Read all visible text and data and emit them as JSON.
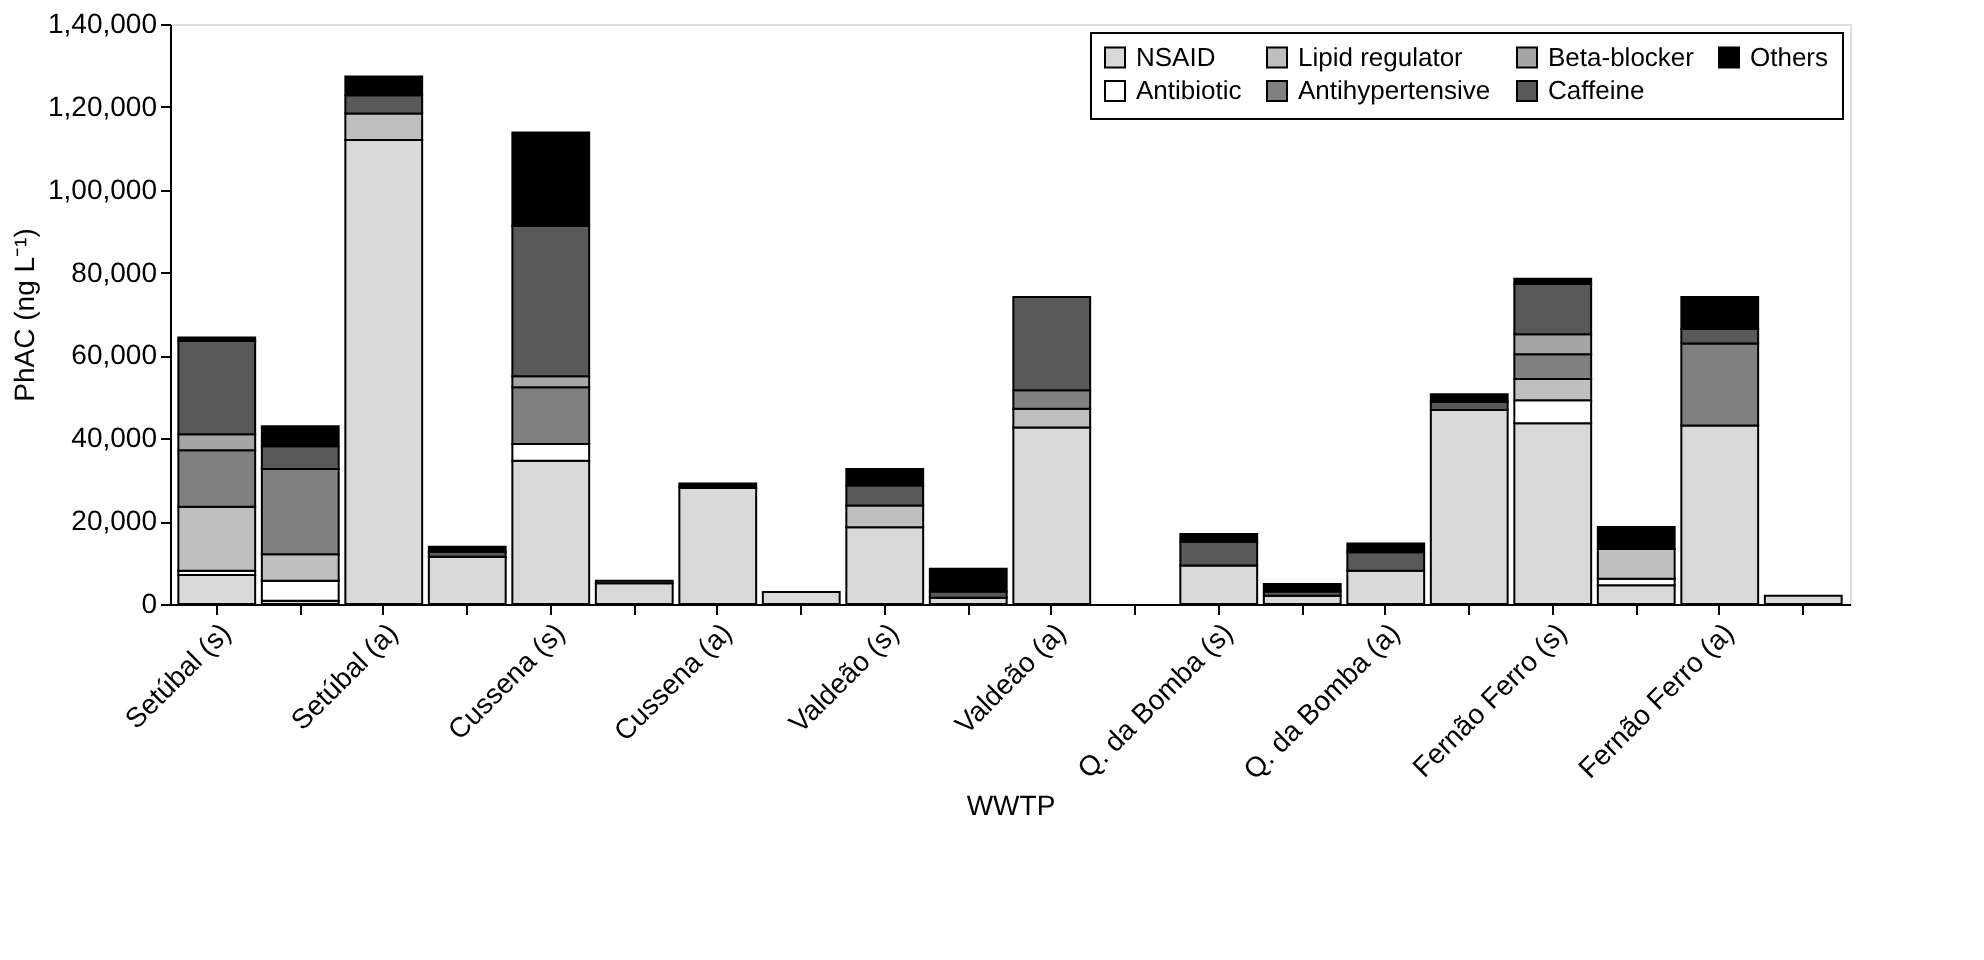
{
  "chart_data": {
    "type": "bar",
    "stacked": true,
    "xlabel": "WWTP",
    "ylabel": "PhAC (ng L⁻¹)",
    "categories": [
      "Setúbal (s)",
      null,
      "Setúbal (a)",
      null,
      "Cussena (s)",
      null,
      "Cussena (a)",
      null,
      "Valdeão (s)",
      null,
      "Valdeão (a)",
      null,
      "Q. da Bomba (s)",
      null,
      "Q. da Bomba (a)",
      null,
      "Fernão Ferro (s)",
      null,
      "Fernão Ferro (a)",
      null
    ],
    "series": [
      {
        "name": "NSAID",
        "color": "#d9d9d9",
        "values": [
          7000,
          800,
          112000,
          11400,
          34600,
          5000,
          28000,
          2900,
          18500,
          1500,
          42600,
          null,
          9300,
          2000,
          8000,
          46800,
          43600,
          4500,
          43100,
          2000
        ]
      },
      {
        "name": "Antibiotic",
        "color": "#ffffff",
        "values": [
          1000,
          4800,
          null,
          null,
          4000,
          null,
          null,
          null,
          null,
          null,
          null,
          null,
          null,
          null,
          null,
          null,
          5600,
          1600,
          null,
          null
        ]
      },
      {
        "name": "Lipid regulator",
        "color": "#bfbfbf",
        "values": [
          15500,
          6400,
          6400,
          null,
          null,
          null,
          null,
          null,
          5300,
          null,
          4500,
          null,
          null,
          null,
          null,
          null,
          5100,
          7200,
          null,
          null
        ]
      },
      {
        "name": "Antihypertensive",
        "color": "#808080",
        "values": [
          13600,
          20600,
          null,
          null,
          13700,
          null,
          null,
          null,
          null,
          null,
          4500,
          null,
          null,
          null,
          null,
          null,
          6000,
          null,
          19800,
          null
        ]
      },
      {
        "name": "Beta-blocker",
        "color": "#a6a6a6",
        "values": [
          3900,
          null,
          null,
          null,
          2700,
          null,
          null,
          null,
          null,
          null,
          null,
          null,
          null,
          null,
          null,
          null,
          4800,
          null,
          null,
          null
        ]
      },
      {
        "name": "Caffeine",
        "color": "#595959",
        "values": [
          22500,
          5500,
          4400,
          1200,
          36300,
          600,
          null,
          null,
          4800,
          1500,
          22500,
          null,
          5700,
          1000,
          4500,
          2000,
          12200,
          null,
          3500,
          null
        ]
      },
      {
        "name": "Others",
        "color": "#000000",
        "values": [
          800,
          4800,
          4500,
          1200,
          22500,
          null,
          1100,
          null,
          4000,
          5500,
          null,
          null,
          1900,
          1800,
          2100,
          1800,
          1200,
          5300,
          7700,
          null
        ]
      }
    ],
    "ylim": [
      0,
      140000
    ],
    "yticks": [
      0,
      {
        "value": 20000,
        "label": "20,000"
      },
      {
        "value": 40000,
        "label": "40,000"
      },
      {
        "value": 60000,
        "label": "60,000"
      },
      {
        "value": 80000,
        "label": "80,000"
      },
      {
        "value": 100000,
        "label": "1,00,000"
      },
      {
        "value": 120000,
        "label": "1,20,000"
      },
      {
        "value": 140000,
        "label": "1,40,000"
      }
    ],
    "grid": false,
    "legend": "top right"
  }
}
